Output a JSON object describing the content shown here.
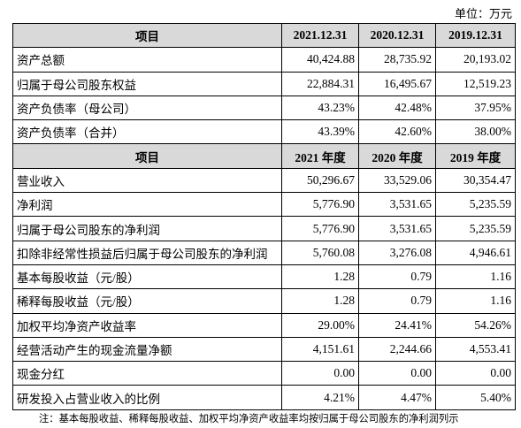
{
  "unit": "单位：万元",
  "table": {
    "sections": [
      {
        "header": [
          "项目",
          "2021.12.31",
          "2020.12.31",
          "2019.12.31"
        ],
        "rows": [
          [
            "资产总额",
            "40,424.88",
            "28,735.92",
            "20,193.02"
          ],
          [
            "归属于母公司股东权益",
            "22,884.31",
            "16,495.67",
            "12,519.23"
          ],
          [
            "资产负债率（母公司）",
            "43.23%",
            "42.48%",
            "37.95%"
          ],
          [
            "资产负债率（合并）",
            "43.39%",
            "42.60%",
            "38.00%"
          ]
        ]
      },
      {
        "header": [
          "项目",
          "2021 年度",
          "2020 年度",
          "2019 年度"
        ],
        "rows": [
          [
            "营业收入",
            "50,296.67",
            "33,529.06",
            "30,354.47"
          ],
          [
            "净利润",
            "5,776.90",
            "3,531.65",
            "5,235.59"
          ],
          [
            "归属于母公司股东的净利润",
            "5,776.90",
            "3,531.65",
            "5,235.59"
          ],
          [
            "扣除非经常性损益后归属于母公司股东的净利润",
            "5,760.08",
            "3,276.08",
            "4,946.61"
          ],
          [
            "基本每股收益（元/股）",
            "1.28",
            "0.79",
            "1.16"
          ],
          [
            "稀释每股收益（元/股）",
            "1.28",
            "0.79",
            "1.16"
          ],
          [
            "加权平均净资产收益率",
            "29.00%",
            "24.41%",
            "54.26%"
          ],
          [
            "经营活动产生的现金流量净额",
            "4,151.61",
            "2,244.66",
            "4,553.41"
          ],
          [
            "现金分红",
            "0.00",
            "0.00",
            "0.00"
          ],
          [
            "研发投入占营业收入的比例",
            "4.21%",
            "4.47%",
            "5.40%"
          ]
        ]
      }
    ]
  },
  "note": "注：基本每股收益、稀释每股收益、加权平均净资产收益率均按归属于母公司股东的净利润列示"
}
